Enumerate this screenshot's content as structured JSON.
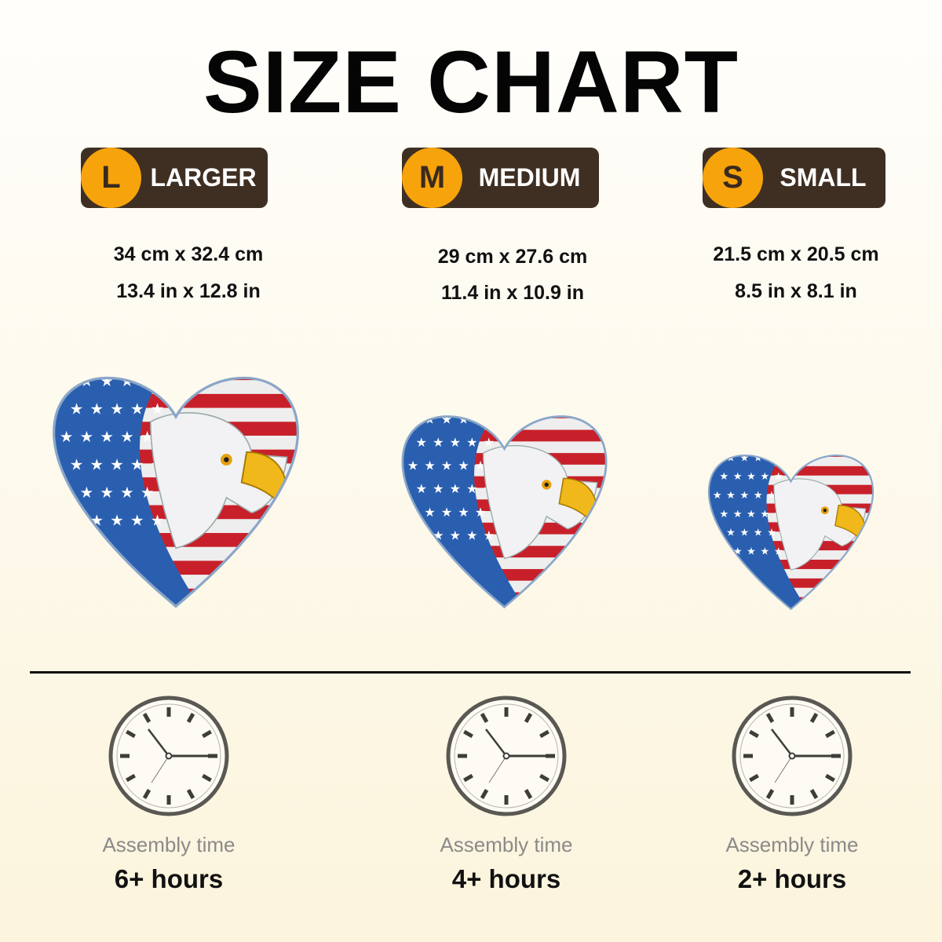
{
  "title": "SIZE CHART",
  "sizes": [
    {
      "letter": "L",
      "label": "LARGER",
      "cm": "34 cm x 32.4 cm",
      "inch": "13.4 in x 12.8 in",
      "assembly_label": "Assembly time",
      "assembly_time": "6+ hours"
    },
    {
      "letter": "M",
      "label": "MEDIUM",
      "cm": "29 cm x 27.6 cm",
      "inch": "11.4 in x 10.9 in",
      "assembly_label": "Assembly time",
      "assembly_time": "4+ hours"
    },
    {
      "letter": "S",
      "label": "SMALL",
      "cm": "21.5 cm x 20.5 cm",
      "inch": "8.5 in x 8.1 in",
      "assembly_label": "Assembly time",
      "assembly_time": "2+ hours"
    }
  ],
  "colors": {
    "badge_circle": "#f7a30b",
    "badge_bg": "#3f2f23",
    "flag_red": "#c8202a",
    "flag_blue": "#2a5fb0"
  },
  "icons": {
    "product": "eagle-flag-heart-puzzle",
    "clock": "roman-numeral-clock-icon"
  }
}
